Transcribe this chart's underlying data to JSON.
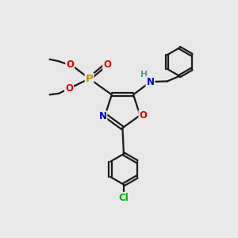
{
  "bg_color": "#e8e8e8",
  "bond_color": "#1a1a1a",
  "bond_width": 1.6,
  "atom_colors": {
    "C": "#1a1a1a",
    "N": "#0000cc",
    "O": "#dd0000",
    "P": "#cc8800",
    "Cl": "#00aa00",
    "H": "#4a9a9a"
  },
  "font_size": 8.5,
  "fig_size": [
    3.0,
    3.0
  ],
  "dpi": 100,
  "xlim": [
    0,
    10
  ],
  "ylim": [
    0,
    10
  ]
}
